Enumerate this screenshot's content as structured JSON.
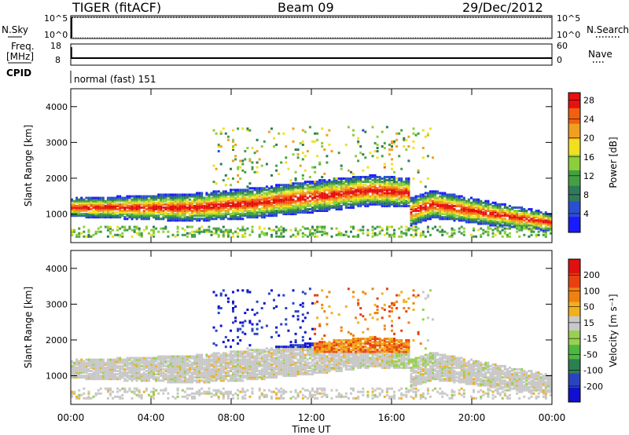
{
  "header": {
    "radar": "TIGER (fitACF)",
    "beam": "Beam 09",
    "date": "29/Dec/2012"
  },
  "labels": {
    "nsky": "N.Sky",
    "nsearch": "N.Search",
    "freq": "Freq.",
    "mhz": "[MHz]",
    "nave": "Nave",
    "cpid": "CPID",
    "cpid_value": "normal (fast) 151",
    "power_label": "Power [dB]",
    "velocity_label": "Velocity [m s⁻¹]"
  },
  "status_panels": {
    "nsky_ticks": [
      "10^5",
      "10^0"
    ],
    "nsearch_ticks": [
      "10^5",
      "10^0"
    ],
    "freq_ticks": [
      "18",
      "8"
    ],
    "nave_ticks": [
      "60",
      "0"
    ]
  },
  "chart_data": [
    {
      "type": "heatmap",
      "title": "Power",
      "ylabel": "Slant Range [km]",
      "xlabel": "",
      "x_ticks": [
        "00:00",
        "04:00",
        "08:00",
        "12:00",
        "16:00",
        "20:00",
        "00:00"
      ],
      "y_ticks": [
        1000,
        2000,
        3000,
        4000
      ],
      "ylim": [
        200,
        4500
      ],
      "colorbar": {
        "label": "Power [dB]",
        "ticks": [
          4,
          8,
          12,
          16,
          20,
          24,
          28
        ],
        "colors": [
          "#1a1aff",
          "#2a4fd0",
          "#2f7a5a",
          "#43a043",
          "#8ccf3a",
          "#f0e020",
          "#f0a020",
          "#f06010",
          "#e81010"
        ]
      }
    },
    {
      "type": "heatmap",
      "title": "Velocity",
      "ylabel": "Slant Range [km]",
      "xlabel": "Time UT",
      "x_ticks": [
        "00:00",
        "04:00",
        "08:00",
        "12:00",
        "16:00",
        "20:00",
        "00:00"
      ],
      "y_ticks": [
        1000,
        2000,
        3000,
        4000
      ],
      "ylim": [
        200,
        4500
      ],
      "colorbar": {
        "label": "Velocity [m s⁻¹]",
        "ticks": [
          200,
          100,
          50,
          15,
          -15,
          -50,
          -100,
          -200
        ],
        "colors": [
          "#1010d0",
          "#2a44c0",
          "#2c7f50",
          "#4cb840",
          "#9ad050",
          "#c8c8c8",
          "#f0b020",
          "#f08010",
          "#e84010",
          "#e01010"
        ]
      }
    }
  ]
}
